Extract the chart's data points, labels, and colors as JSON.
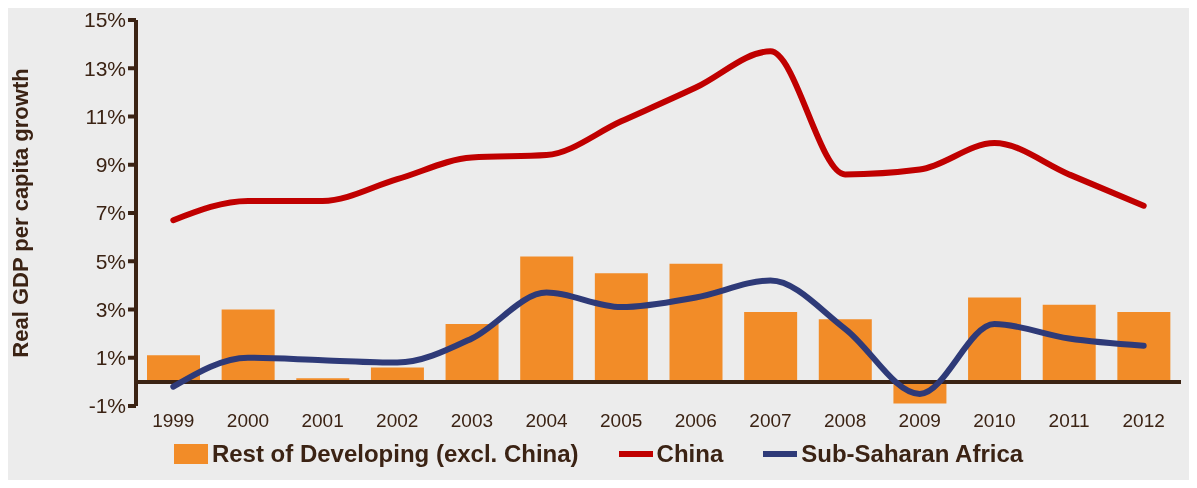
{
  "chart_data": {
    "type": "bar",
    "ylabel": "Real GDP per capita growth",
    "categories": [
      "1999",
      "2000",
      "2001",
      "2002",
      "2003",
      "2004",
      "2005",
      "2006",
      "2007",
      "2008",
      "2009",
      "2010",
      "2011",
      "2012"
    ],
    "series": [
      {
        "name": "Rest of Developing (excl. China)",
        "color": "#f28c28",
        "values": [
          1.1,
          3.0,
          0.15,
          0.6,
          2.4,
          5.2,
          4.5,
          4.9,
          2.9,
          2.6,
          -0.9,
          3.5,
          3.2,
          2.9
        ]
      },
      {
        "name": "China",
        "type": "line",
        "color": "#c00000",
        "values": [
          6.7,
          7.5,
          7.5,
          8.4,
          9.3,
          9.4,
          10.8,
          12.2,
          13.7,
          8.6,
          8.8,
          9.9,
          8.6,
          7.3
        ]
      },
      {
        "name": "Sub-Saharan Africa",
        "type": "line",
        "color": "#2e3a78",
        "values": [
          -0.2,
          1.0,
          0.9,
          0.8,
          1.8,
          3.7,
          3.1,
          3.5,
          4.2,
          2.2,
          -0.5,
          2.4,
          1.8,
          1.5
        ]
      }
    ],
    "ylim": [
      -1,
      15
    ],
    "yticks": [
      {
        "value": -1,
        "label": "-1%"
      },
      {
        "value": 1,
        "label": "1%"
      },
      {
        "value": 3,
        "label": "3%"
      },
      {
        "value": 5,
        "label": "5%"
      },
      {
        "value": 7,
        "label": "7%"
      },
      {
        "value": 9,
        "label": "9%"
      },
      {
        "value": 11,
        "label": "11%"
      },
      {
        "value": 13,
        "label": "13%"
      },
      {
        "value": 15,
        "label": "15%"
      }
    ],
    "grid": false,
    "legend": "bottom",
    "marker": "none",
    "line_style": "solid"
  }
}
